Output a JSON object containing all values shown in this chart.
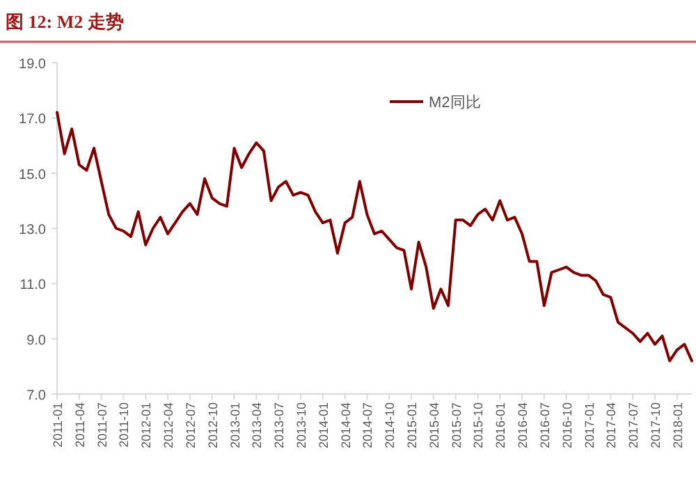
{
  "chart_data": {
    "type": "line",
    "title": "图 12:  M2 走势",
    "categories": [
      "2011-01",
      null,
      null,
      "2011-04",
      null,
      null,
      "2011-07",
      null,
      null,
      "2011-10",
      null,
      null,
      "2012-01",
      null,
      null,
      "2012-04",
      null,
      null,
      "2012-07",
      null,
      null,
      "2012-10",
      null,
      null,
      "2013-01",
      null,
      null,
      "2013-04",
      null,
      null,
      "2013-07",
      null,
      null,
      "2013-10",
      null,
      null,
      "2014-01",
      null,
      null,
      "2014-04",
      null,
      null,
      "2014-07",
      null,
      null,
      "2014-10",
      null,
      null,
      "2015-01",
      null,
      null,
      "2015-04",
      null,
      null,
      "2015-07",
      null,
      null,
      "2015-10",
      null,
      null,
      "2016-01",
      null,
      null,
      "2016-04",
      null,
      null,
      "2016-07",
      null,
      null,
      "2016-10",
      null,
      null,
      "2017-01",
      null,
      null,
      "2017-04",
      null,
      null,
      "2017-07",
      null,
      null,
      "2017-10",
      null,
      null,
      "2018-01",
      null,
      null
    ],
    "series": [
      {
        "name": "M2同比",
        "color": "#800000",
        "values": [
          17.2,
          15.7,
          16.6,
          15.3,
          15.1,
          15.9,
          14.7,
          13.5,
          13.0,
          12.9,
          12.7,
          13.6,
          12.4,
          13.0,
          13.4,
          12.8,
          13.2,
          13.6,
          13.9,
          13.5,
          14.8,
          14.1,
          13.9,
          13.8,
          15.9,
          15.2,
          15.7,
          16.1,
          15.8,
          14.0,
          14.5,
          14.7,
          14.2,
          14.3,
          14.2,
          13.6,
          13.2,
          13.3,
          12.1,
          13.2,
          13.4,
          14.7,
          13.5,
          12.8,
          12.9,
          12.6,
          12.3,
          12.2,
          10.8,
          12.5,
          11.6,
          10.1,
          10.8,
          10.2,
          13.3,
          13.3,
          13.1,
          13.5,
          13.7,
          13.3,
          14.0,
          13.3,
          13.4,
          12.8,
          11.8,
          11.8,
          10.2,
          11.4,
          11.5,
          11.6,
          11.4,
          11.3,
          11.3,
          11.1,
          10.6,
          10.5,
          9.6,
          9.4,
          9.2,
          8.9,
          9.2,
          8.8,
          9.1,
          8.2,
          8.6,
          8.8,
          8.2
        ]
      }
    ],
    "ylim": [
      7,
      19
    ],
    "yticks": [
      {
        "value": 7,
        "label": "7.0"
      },
      {
        "value": 9,
        "label": "9.0"
      },
      {
        "value": 11,
        "label": "11.0"
      },
      {
        "value": 13,
        "label": "13.0"
      },
      {
        "value": 15,
        "label": "15.0"
      },
      {
        "value": 17,
        "label": "17.0"
      },
      {
        "value": 19,
        "label": "19.0"
      }
    ],
    "legend": "top"
  }
}
